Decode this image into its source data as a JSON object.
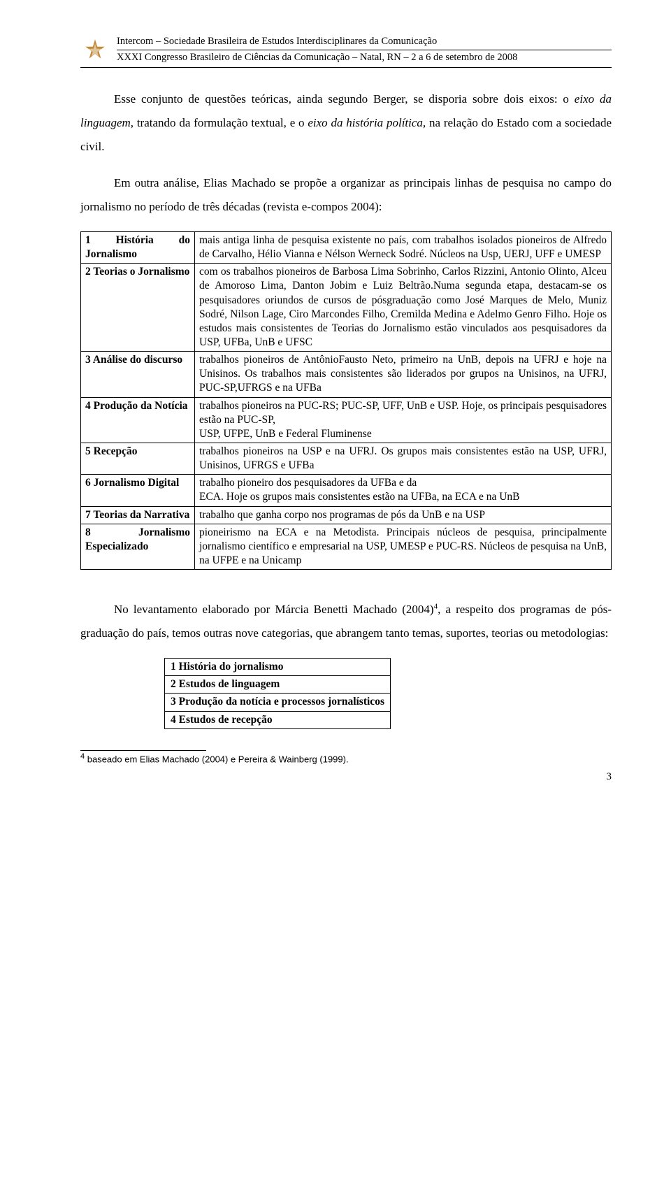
{
  "header": {
    "line1": "Intercom – Sociedade Brasileira de Estudos Interdisciplinares da Comunicação",
    "line2": "XXXI Congresso Brasileiro de Ciências da Comunicação – Natal, RN – 2 a 6 de setembro de 2008"
  },
  "para1_a": "Esse conjunto de questões teóricas, ainda segundo Berger, se disporia sobre dois eixos: o ",
  "para1_b": "eixo da linguagem",
  "para1_c": ", tratando da formulação textual, e o ",
  "para1_d": "eixo da história política",
  "para1_e": ", na relação do Estado com a sociedade civil.",
  "para2": "Em outra análise, Elias Machado se propõe a organizar as principais linhas de pesquisa no campo do jornalismo no período de três décadas (revista e-compos 2004):",
  "table1": {
    "rows": [
      {
        "left": "1 História do Jornalismo",
        "right": "mais antiga linha de pesquisa existente no país, com trabalhos isolados pioneiros de Alfredo de Carvalho, Hélio Vianna e Nélson Werneck Sodré. Núcleos na Usp, UERJ, UFF e UMESP"
      },
      {
        "left": "2 Teorias o Jornalismo",
        "right": "com os trabalhos pioneiros de Barbosa Lima Sobrinho, Carlos Rizzini, Antonio Olinto, Alceu de Amoroso Lima, Danton Jobim e Luiz Beltrão.Numa segunda etapa, destacam-se os pesquisadores oriundos de cursos de pósgraduação como José Marques de Melo, Muniz Sodré, Nilson Lage, Ciro Marcondes Filho, Cremilda Medina e Adelmo Genro Filho. Hoje os estudos mais consistentes de Teorias do Jornalismo estão vinculados aos pesquisadores da USP, UFBa, UnB e UFSC"
      },
      {
        "left": "3 Análise do discurso",
        "right": "trabalhos pioneiros de AntônioFausto Neto, primeiro na UnB, depois na UFRJ e hoje na Unisinos. Os trabalhos mais consistentes são liderados por grupos na Unisinos, na UFRJ, PUC-SP,UFRGS e na UFBa"
      },
      {
        "left": "4 Produção da Notícia",
        "right": "trabalhos pioneiros na PUC-RS; PUC-SP, UFF, UnB e USP. Hoje, os principais pesquisadores estão na PUC-SP,\nUSP, UFPE, UnB e Federal Fluminense"
      },
      {
        "left": "5 Recepção",
        "right": "trabalhos pioneiros na USP e na UFRJ. Os grupos mais consistentes estão na USP, UFRJ, Unisinos, UFRGS e UFBa"
      },
      {
        "left": "6 Jornalismo Digital",
        "right": "trabalho pioneiro dos pesquisadores da UFBa e da\nECA. Hoje os grupos mais consistentes estão na UFBa, na ECA e na UnB"
      },
      {
        "left": "7 Teorias da Narrativa",
        "right": "trabalho que ganha corpo nos programas de pós da UnB e na USP"
      },
      {
        "left": "8 Jornalismo Especializado",
        "right": "pioneirismo na ECA e na Metodista. Principais núcleos de pesquisa, principalmente jornalismo científico e empresarial na USP, UMESP e PUC-RS. Núcleos de pesquisa na UnB, na UFPE e na Unicamp"
      }
    ]
  },
  "para3_a": "No levantamento elaborado por Márcia Benetti Machado (2004)",
  "para3_sup": "4",
  "para3_b": ", a respeito dos programas de pós-graduação do país, temos outras nove categorias, que abrangem tanto temas, suportes, teorias ou metodologias:",
  "table2": {
    "rows": [
      "1 História do jornalismo",
      "2 Estudos de linguagem",
      "3 Produção da notícia e processos jornalísticos",
      "4 Estudos de recepção"
    ]
  },
  "footnote_sup": "4",
  "footnote": " baseado em Elias Machado (2004) e Pereira & Wainberg (1999).",
  "pagenum": "3",
  "logo_color": "#c08a3a"
}
